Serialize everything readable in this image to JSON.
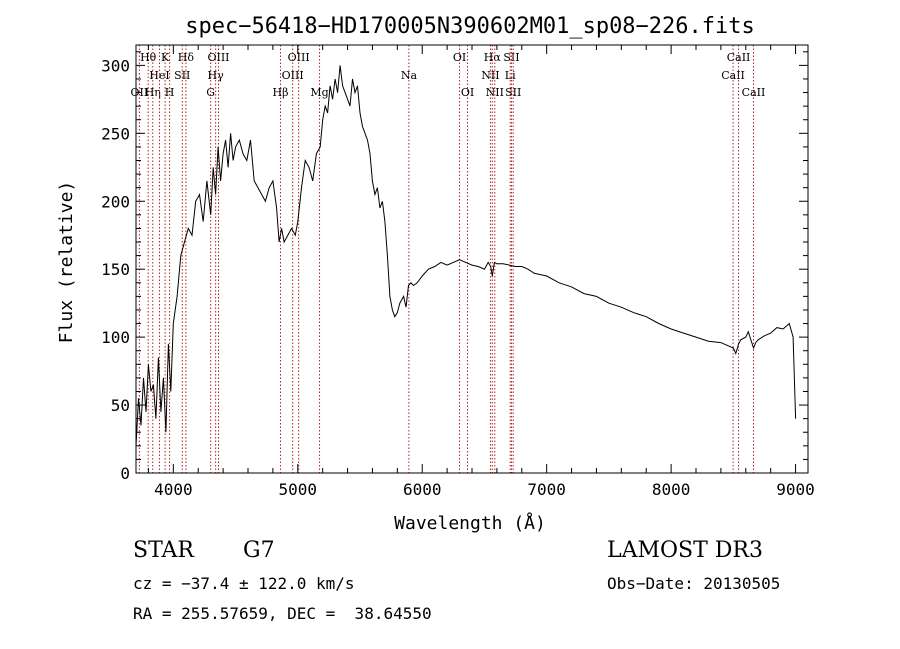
{
  "chart_data": {
    "type": "line",
    "title": "spec−56418−HD170005N390602M01_sp08−226.fits",
    "xlabel": "Wavelength (Å)",
    "ylabel": "Flux (relative)",
    "xlim": [
      3700,
      9100
    ],
    "ylim": [
      0,
      315
    ],
    "xticks": [
      4000,
      5000,
      6000,
      7000,
      8000,
      9000
    ],
    "yticks": [
      0,
      50,
      100,
      150,
      200,
      250,
      300
    ],
    "grid": false,
    "series": [
      {
        "x": [
          3700,
          3720,
          3740,
          3760,
          3780,
          3800,
          3820,
          3840,
          3860,
          3880,
          3900,
          3920,
          3940,
          3960,
          3980,
          4000,
          4030,
          4060,
          4090,
          4120,
          4150,
          4180,
          4210,
          4240,
          4270,
          4300,
          4320,
          4340,
          4360,
          4380,
          4400,
          4420,
          4440,
          4460,
          4480,
          4500,
          4530,
          4560,
          4590,
          4620,
          4650,
          4680,
          4710,
          4740,
          4770,
          4800,
          4830,
          4850,
          4860,
          4870,
          4890,
          4920,
          4950,
          4980,
          5000,
          5030,
          5060,
          5090,
          5120,
          5150,
          5180,
          5200,
          5220,
          5240,
          5260,
          5280,
          5300,
          5320,
          5340,
          5360,
          5380,
          5400,
          5420,
          5440,
          5460,
          5480,
          5500,
          5520,
          5540,
          5560,
          5580,
          5600,
          5620,
          5640,
          5660,
          5680,
          5700,
          5720,
          5740,
          5760,
          5780,
          5800,
          5820,
          5850,
          5870,
          5890,
          5910,
          5930,
          5960,
          6000,
          6050,
          6100,
          6150,
          6200,
          6250,
          6300,
          6350,
          6400,
          6450,
          6500,
          6530,
          6550,
          6563,
          6580,
          6600,
          6650,
          6700,
          6750,
          6800,
          6850,
          6900,
          6950,
          7000,
          7100,
          7200,
          7300,
          7400,
          7500,
          7600,
          7700,
          7800,
          7900,
          8000,
          8100,
          8200,
          8300,
          8400,
          8450,
          8500,
          8520,
          8542,
          8560,
          8600,
          8620,
          8662,
          8680,
          8700,
          8750,
          8800,
          8850,
          8900,
          8950,
          8980,
          9000
        ],
        "y": [
          20,
          55,
          35,
          70,
          45,
          80,
          60,
          65,
          40,
          85,
          45,
          70,
          30,
          95,
          60,
          110,
          130,
          160,
          170,
          180,
          175,
          200,
          205,
          185,
          215,
          190,
          225,
          205,
          240,
          215,
          235,
          245,
          225,
          250,
          230,
          240,
          245,
          235,
          230,
          245,
          215,
          210,
          205,
          200,
          210,
          215,
          195,
          170,
          175,
          180,
          170,
          175,
          180,
          175,
          185,
          210,
          230,
          225,
          215,
          235,
          240,
          260,
          270,
          265,
          285,
          275,
          290,
          280,
          300,
          285,
          280,
          275,
          270,
          290,
          280,
          285,
          265,
          255,
          250,
          245,
          235,
          215,
          205,
          210,
          195,
          200,
          185,
          160,
          130,
          120,
          115,
          118,
          125,
          130,
          122,
          138,
          140,
          138,
          140,
          145,
          150,
          152,
          155,
          153,
          155,
          157,
          155,
          153,
          152,
          150,
          155,
          152,
          145,
          155,
          154,
          154,
          153,
          152,
          152,
          150,
          147,
          146,
          145,
          140,
          137,
          132,
          130,
          125,
          122,
          118,
          115,
          110,
          106,
          103,
          100,
          97,
          96,
          94,
          92,
          88,
          95,
          98,
          100,
          104,
          92,
          96,
          98,
          101,
          103,
          107,
          106,
          110,
          100,
          40
        ],
        "stroke": "#000000"
      }
    ],
    "lines": {
      "color": "#b22222",
      "list": [
        {
          "w": 3727,
          "label": "OII",
          "row": 2
        },
        {
          "w": 3798,
          "label": "Hθ",
          "row": 0
        },
        {
          "w": 3835,
          "label": "Hη",
          "row": 2
        },
        {
          "w": 3889,
          "label": "HeI",
          "row": 1
        },
        {
          "w": 3934,
          "label": "K",
          "row": 0
        },
        {
          "w": 3970,
          "label": "H",
          "row": 2
        },
        {
          "w": 4101,
          "label": "Hδ",
          "row": 0
        },
        {
          "w": 4072,
          "label": "SII",
          "row": 1
        },
        {
          "w": 4300,
          "label": "G",
          "row": 2
        },
        {
          "w": 4340,
          "label": "Hγ",
          "row": 1
        },
        {
          "w": 4363,
          "label": "OIII",
          "row": 0
        },
        {
          "w": 4861,
          "label": "Hβ",
          "row": 2
        },
        {
          "w": 4959,
          "label": "OIII",
          "row": 1
        },
        {
          "w": 5007,
          "label": "OIII",
          "row": 0
        },
        {
          "w": 5175,
          "label": "Mg",
          "row": 2
        },
        {
          "w": 5893,
          "label": "Na",
          "row": 1
        },
        {
          "w": 6300,
          "label": "OI",
          "row": 0
        },
        {
          "w": 6364,
          "label": "OI",
          "row": 2
        },
        {
          "w": 6548,
          "label": "NII",
          "row": 1
        },
        {
          "w": 6563,
          "label": "Hα",
          "row": 0
        },
        {
          "w": 6583,
          "label": "NII",
          "row": 2
        },
        {
          "w": 6707,
          "label": "Li",
          "row": 1
        },
        {
          "w": 6717,
          "label": "SII",
          "row": 0
        },
        {
          "w": 6731,
          "label": "SII",
          "row": 2
        },
        {
          "w": 8498,
          "label": "CaII",
          "row": 1
        },
        {
          "w": 8542,
          "label": "CaII",
          "row": 0
        },
        {
          "w": 8662,
          "label": "CaII",
          "row": 2
        }
      ]
    }
  },
  "info": {
    "object_class": "STAR",
    "subclass": "G7",
    "survey": "LAMOST DR3",
    "redshift": "cz = −37.4 ± 122.0 km/s",
    "obs_date": "Obs−Date: 20130505",
    "coords": "RA = 255.57659, DEC =  38.64550"
  }
}
